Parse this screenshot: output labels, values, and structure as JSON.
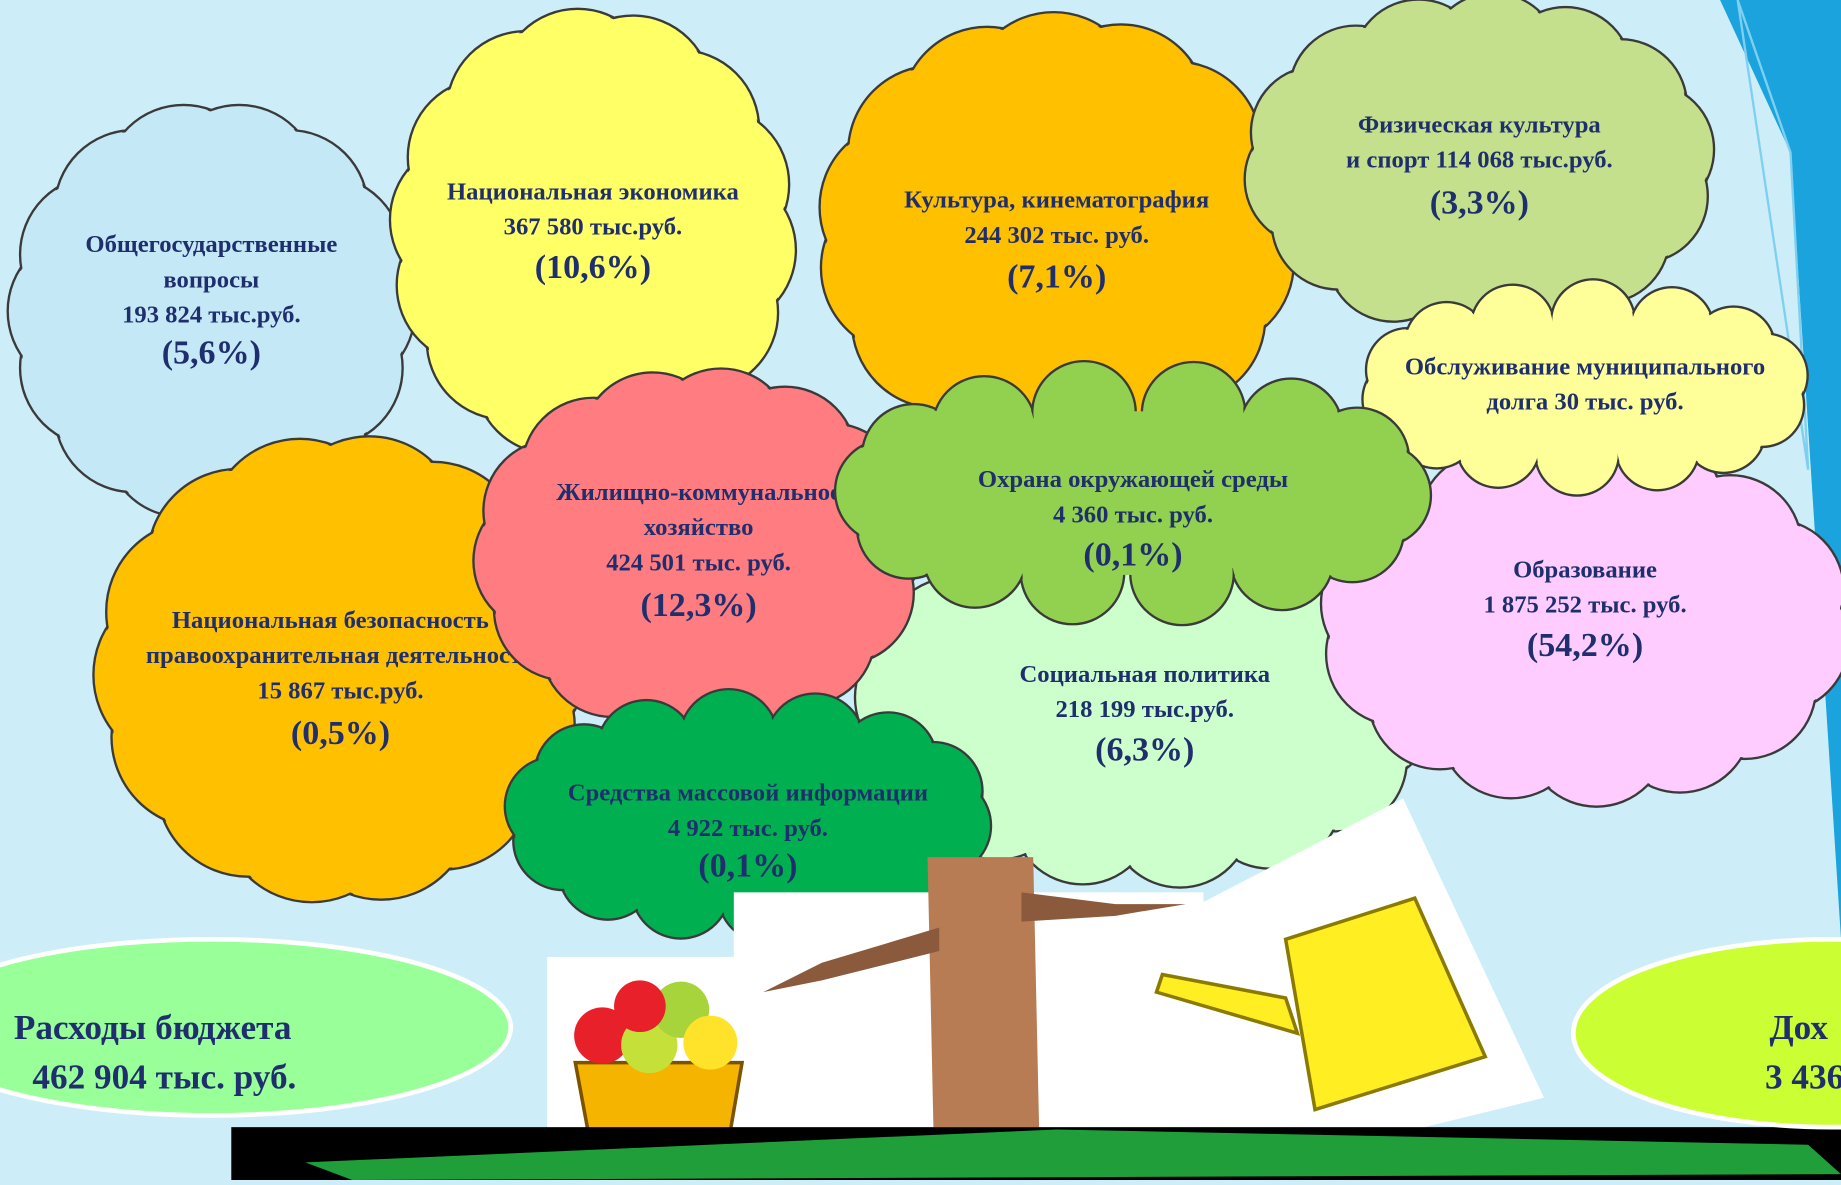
{
  "clouds": [
    {
      "lines": [
        "Общегосударственные",
        "вопросы",
        "193 824 тыс.руб."
      ],
      "share": "(5,6%)"
    },
    {
      "lines": [
        "Национальная экономика",
        "367 580 тыс.руб."
      ],
      "share": "(10,6%)"
    },
    {
      "lines": [
        "Культура, кинематография",
        "244 302 тыс. руб."
      ],
      "share": "(7,1%)"
    },
    {
      "lines": [
        "Физическая культура",
        "и спорт  114 068 тыс.руб."
      ],
      "share": "(3,3%)"
    },
    {
      "lines": [
        "Национальная безопасность и",
        "правоохранительная деятельность",
        "15 867 тыс.руб."
      ],
      "share": "(0,5%)"
    },
    {
      "lines": [
        "Социальная политика",
        "218 199 тыс.руб."
      ],
      "share": "(6,3%)"
    },
    {
      "lines": [
        "Образование",
        "1 875 252 тыс. руб."
      ],
      "share": "(54,2%)"
    },
    {
      "lines": [
        "Обслуживание муниципального",
        "долга 30 тыс. руб."
      ]
    },
    {
      "lines": [
        "Жилищно-коммунальное",
        "хозяйство",
        "424 501 тыс. руб."
      ],
      "share": "(12,3%)"
    },
    {
      "lines": [
        "Охрана окружающей среды",
        "4 360 тыс. руб."
      ],
      "share": "(0,1%)"
    },
    {
      "lines": [
        "Средства массовой информации",
        "4 922 тыс. руб."
      ],
      "share": "(0,1%)"
    }
  ],
  "totals": {
    "expenses": [
      "Расходы бюджета",
      "462 904 тыс. руб."
    ],
    "income": [
      "Дох",
      "3 436"
    ]
  }
}
